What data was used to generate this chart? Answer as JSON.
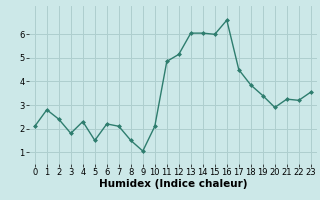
{
  "x": [
    0,
    1,
    2,
    3,
    4,
    5,
    6,
    7,
    8,
    9,
    10,
    11,
    12,
    13,
    14,
    15,
    16,
    17,
    18,
    19,
    20,
    21,
    22,
    23
  ],
  "y": [
    2.1,
    2.8,
    2.4,
    1.8,
    2.3,
    1.5,
    2.2,
    2.1,
    1.5,
    1.05,
    2.1,
    4.85,
    5.15,
    6.05,
    6.05,
    6.0,
    6.6,
    4.5,
    3.85,
    3.4,
    2.9,
    3.25,
    3.2,
    3.55
  ],
  "line_color": "#2e7d6e",
  "marker": "D",
  "marker_size": 2.0,
  "background_color": "#cce8e8",
  "grid_color": "#aecece",
  "xlabel": "Humidex (Indice chaleur)",
  "xlabel_fontsize": 7.5,
  "xlabel_bold": true,
  "ylim": [
    0.5,
    7.2
  ],
  "xlim": [
    -0.5,
    23.5
  ],
  "yticks": [
    1,
    2,
    3,
    4,
    5,
    6
  ],
  "xticks": [
    0,
    1,
    2,
    3,
    4,
    5,
    6,
    7,
    8,
    9,
    10,
    11,
    12,
    13,
    14,
    15,
    16,
    17,
    18,
    19,
    20,
    21,
    22,
    23
  ],
  "tick_fontsize": 6.0,
  "linewidth": 1.0
}
